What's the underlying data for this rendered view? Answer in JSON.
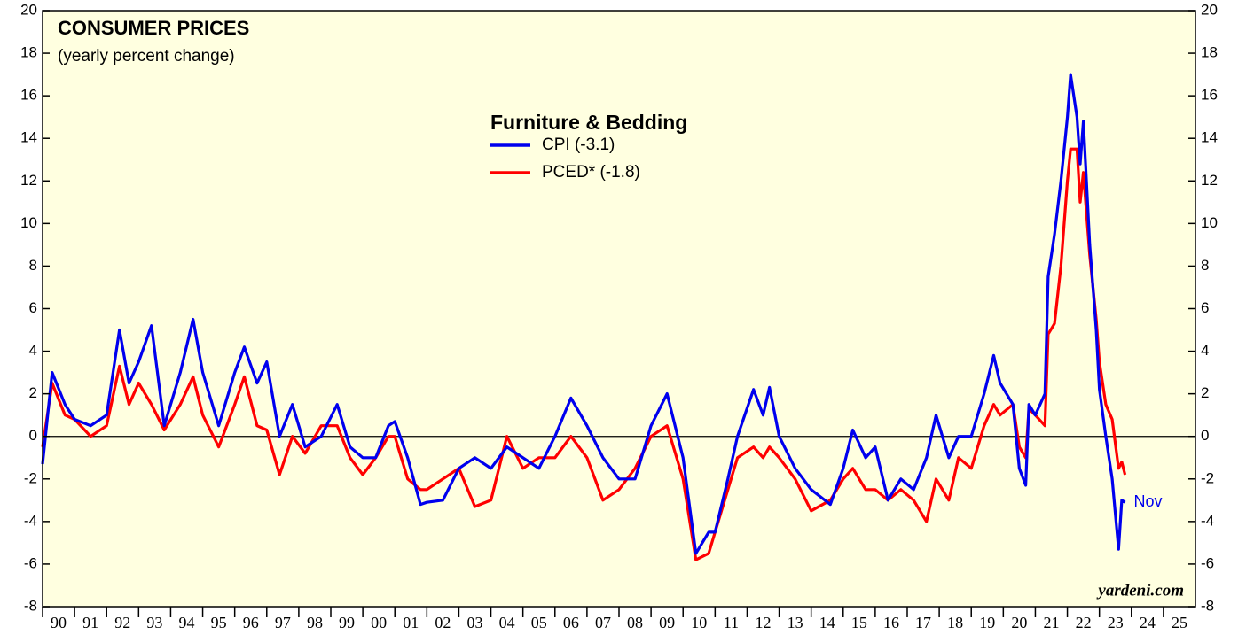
{
  "chart_data": {
    "type": "line",
    "title": "CONSUMER PRICES",
    "subtitle": "(yearly percent change)",
    "legend_title": "Furniture & Bedding",
    "annotation": "Nov",
    "source": "yardeni.com",
    "x": [
      1990.0,
      1990.3,
      1990.7,
      1991.0,
      1991.5,
      1992.0,
      1992.4,
      1992.7,
      1993.0,
      1993.4,
      1993.8,
      1994.3,
      1994.7,
      1995.0,
      1995.5,
      1996.0,
      1996.3,
      1996.7,
      1997.0,
      1997.4,
      1997.8,
      1998.2,
      1998.7,
      1999.2,
      1999.6,
      2000.0,
      2000.4,
      2000.8,
      2001.0,
      2001.4,
      2001.8,
      2002.0,
      2002.5,
      2003.0,
      2003.5,
      2004.0,
      2004.5,
      2005.0,
      2005.5,
      2006.0,
      2006.5,
      2007.0,
      2007.5,
      2008.0,
      2008.5,
      2009.0,
      2009.5,
      2010.0,
      2010.4,
      2010.8,
      2011.0,
      2011.4,
      2011.7,
      2012.2,
      2012.5,
      2012.7,
      2013.0,
      2013.5,
      2014.0,
      2014.6,
      2015.0,
      2015.3,
      2015.7,
      2016.0,
      2016.4,
      2016.8,
      2017.2,
      2017.6,
      2017.9,
      2018.3,
      2018.6,
      2019.0,
      2019.4,
      2019.7,
      2019.9,
      2020.3,
      2020.5,
      2020.7,
      2020.8,
      2021.0,
      2021.3,
      2021.4,
      2021.6,
      2021.8,
      2022.0,
      2022.1,
      2022.3,
      2022.4,
      2022.5,
      2022.7,
      2022.9,
      2023.0,
      2023.2,
      2023.4,
      2023.6,
      2023.7,
      2023.8
    ],
    "series": [
      {
        "name": "CPI (-3.1)",
        "color": "#0000ee",
        "values": [
          -1.3,
          3.0,
          1.5,
          0.8,
          0.5,
          1.0,
          5.0,
          2.5,
          3.5,
          5.2,
          0.5,
          3.0,
          5.5,
          3.0,
          0.5,
          3.0,
          4.2,
          2.5,
          3.5,
          0.0,
          1.5,
          -0.5,
          0.0,
          1.5,
          -0.5,
          -1.0,
          -1.0,
          0.5,
          0.7,
          -1.0,
          -3.2,
          -3.1,
          -3.0,
          -1.5,
          -1.0,
          -1.5,
          -0.5,
          -1.0,
          -1.5,
          0.0,
          1.8,
          0.5,
          -1.0,
          -2.0,
          -2.0,
          0.5,
          2.0,
          -1.0,
          -5.5,
          -4.5,
          -4.5,
          -2.0,
          0.0,
          2.2,
          1.0,
          2.3,
          0.0,
          -1.5,
          -2.5,
          -3.2,
          -1.5,
          0.3,
          -1.0,
          -0.5,
          -3.0,
          -2.0,
          -2.5,
          -1.0,
          1.0,
          -1.0,
          0.0,
          0.0,
          2.0,
          3.8,
          2.5,
          1.5,
          -1.5,
          -2.3,
          1.5,
          1.0,
          2.0,
          7.5,
          9.5,
          12.0,
          15.0,
          17.0,
          15.0,
          12.8,
          14.8,
          9.0,
          5.0,
          2.2,
          0.0,
          -2.0,
          -5.3,
          -3.0,
          -3.1
        ]
      },
      {
        "name": "PCED* (-1.8)",
        "color": "#ff0000",
        "values": [
          -0.5,
          2.5,
          1.0,
          0.8,
          0.0,
          0.5,
          3.3,
          1.5,
          2.5,
          1.5,
          0.3,
          1.5,
          2.8,
          1.0,
          -0.5,
          1.5,
          2.8,
          0.5,
          0.3,
          -1.8,
          0.0,
          -0.8,
          0.5,
          0.5,
          -1.0,
          -1.8,
          -1.0,
          0.0,
          0.0,
          -2.0,
          -2.5,
          -2.5,
          -2.0,
          -1.5,
          -3.3,
          -3.0,
          0.0,
          -1.5,
          -1.0,
          -1.0,
          0.0,
          -1.0,
          -3.0,
          -2.5,
          -1.5,
          0.0,
          0.5,
          -2.0,
          -5.8,
          -5.5,
          -4.5,
          -2.5,
          -1.0,
          -0.5,
          -1.0,
          -0.5,
          -1.0,
          -2.0,
          -3.5,
          -3.0,
          -2.0,
          -1.5,
          -2.5,
          -2.5,
          -3.0,
          -2.5,
          -3.0,
          -4.0,
          -2.0,
          -3.0,
          -1.0,
          -1.5,
          0.5,
          1.5,
          1.0,
          1.5,
          -0.5,
          -1.0,
          1.3,
          1.0,
          0.5,
          4.8,
          5.3,
          8.0,
          12.0,
          13.5,
          13.5,
          11.0,
          12.4,
          8.5,
          5.5,
          3.5,
          1.5,
          0.8,
          -1.5,
          -1.2,
          -1.8
        ]
      }
    ],
    "xlim": [
      1990,
      2026
    ],
    "xticks": [
      {
        "value": 1990.5,
        "label": "90"
      },
      {
        "value": 1991.5,
        "label": "91"
      },
      {
        "value": 1992.5,
        "label": "92"
      },
      {
        "value": 1993.5,
        "label": "93"
      },
      {
        "value": 1994.5,
        "label": "94"
      },
      {
        "value": 1995.5,
        "label": "95"
      },
      {
        "value": 1996.5,
        "label": "96"
      },
      {
        "value": 1997.5,
        "label": "97"
      },
      {
        "value": 1998.5,
        "label": "98"
      },
      {
        "value": 1999.5,
        "label": "99"
      },
      {
        "value": 2000.5,
        "label": "00"
      },
      {
        "value": 2001.5,
        "label": "01"
      },
      {
        "value": 2002.5,
        "label": "02"
      },
      {
        "value": 2003.5,
        "label": "03"
      },
      {
        "value": 2004.5,
        "label": "04"
      },
      {
        "value": 2005.5,
        "label": "05"
      },
      {
        "value": 2006.5,
        "label": "06"
      },
      {
        "value": 2007.5,
        "label": "07"
      },
      {
        "value": 2008.5,
        "label": "08"
      },
      {
        "value": 2009.5,
        "label": "09"
      },
      {
        "value": 2010.5,
        "label": "10"
      },
      {
        "value": 2011.5,
        "label": "11"
      },
      {
        "value": 2012.5,
        "label": "12"
      },
      {
        "value": 2013.5,
        "label": "13"
      },
      {
        "value": 2014.5,
        "label": "14"
      },
      {
        "value": 2015.5,
        "label": "15"
      },
      {
        "value": 2016.5,
        "label": "16"
      },
      {
        "value": 2017.5,
        "label": "17"
      },
      {
        "value": 2018.5,
        "label": "18"
      },
      {
        "value": 2019.5,
        "label": "19"
      },
      {
        "value": 2020.5,
        "label": "20"
      },
      {
        "value": 2021.5,
        "label": "21"
      },
      {
        "value": 2022.5,
        "label": "22"
      },
      {
        "value": 2023.5,
        "label": "23"
      },
      {
        "value": 2024.5,
        "label": "24"
      },
      {
        "value": 2025.5,
        "label": "25"
      }
    ],
    "ylim": [
      -8,
      20
    ],
    "yticks": [
      -8,
      -6,
      -4,
      -2,
      0,
      2,
      4,
      6,
      8,
      10,
      12,
      14,
      16,
      18,
      20
    ]
  }
}
